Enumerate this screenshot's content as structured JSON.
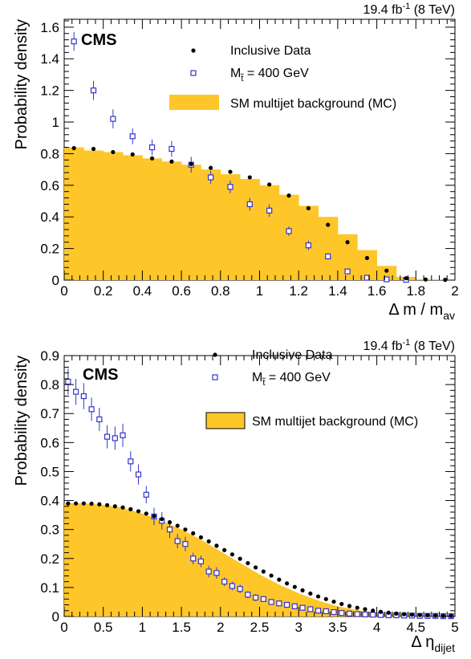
{
  "chart_data": [
    {
      "type": "scatter",
      "lumi_text": "19.4 fb",
      "lumi_sup": "-1",
      "lumi_tail": " (8 TeV)",
      "cms_label": "CMS",
      "xlabel": "Δ m / m",
      "xlabel_sub": "av",
      "ylabel": "Probability density",
      "xlim": [
        0,
        2
      ],
      "ylim": [
        0,
        1.65
      ],
      "xticks": [
        0,
        0.2,
        0.4,
        0.6,
        0.8,
        1,
        1.2,
        1.4,
        1.6,
        1.8,
        2
      ],
      "xtick_labels": [
        "0",
        "0.2",
        "0.4",
        "0.6",
        "0.8",
        "1",
        "1.2",
        "1.4",
        "1.6",
        "1.8",
        "2"
      ],
      "yticks": [
        0,
        0.2,
        0.4,
        0.6,
        0.8,
        1,
        1.2,
        1.4,
        1.6
      ],
      "ytick_labels": [
        "0",
        "0.2",
        "0.4",
        "0.6",
        "0.8",
        "1",
        "1.2",
        "1.4",
        "1.6"
      ],
      "grid": false,
      "legend": {
        "position": "top-right",
        "data_label": "Inclusive Data",
        "signal_label": "M",
        "signal_sub": "t̃",
        "signal_tail": " = 400 GeV",
        "bkg_label": "SM multijet background (MC)"
      },
      "series": [
        {
          "name": "SM multijet background (MC)",
          "kind": "histogram",
          "color": "#ffc629",
          "bin_edges": [
            0,
            0.1,
            0.2,
            0.3,
            0.4,
            0.5,
            0.6,
            0.7,
            0.8,
            0.9,
            1.0,
            1.1,
            1.2,
            1.3,
            1.4,
            1.5,
            1.6,
            1.7,
            1.8,
            1.9,
            2.0
          ],
          "values": [
            0.84,
            0.82,
            0.81,
            0.79,
            0.77,
            0.75,
            0.73,
            0.7,
            0.67,
            0.64,
            0.6,
            0.54,
            0.47,
            0.4,
            0.29,
            0.19,
            0.09,
            0.02,
            0.005,
            0.002
          ]
        },
        {
          "name": "Inclusive Data",
          "kind": "points",
          "color": "#000000",
          "x": [
            0.05,
            0.15,
            0.25,
            0.35,
            0.45,
            0.55,
            0.65,
            0.75,
            0.85,
            0.95,
            1.05,
            1.15,
            1.25,
            1.35,
            1.45,
            1.55,
            1.65,
            1.75,
            1.85,
            1.95
          ],
          "y": [
            0.835,
            0.83,
            0.81,
            0.795,
            0.77,
            0.75,
            0.735,
            0.71,
            0.685,
            0.65,
            0.605,
            0.535,
            0.455,
            0.35,
            0.24,
            0.14,
            0.06,
            0.012,
            0.004,
            0.002
          ]
        },
        {
          "name": "M t̃ = 400 GeV",
          "kind": "points_errors",
          "color": "#3333cc",
          "x": [
            0.05,
            0.15,
            0.25,
            0.35,
            0.45,
            0.55,
            0.65,
            0.75,
            0.85,
            0.95,
            1.05,
            1.15,
            1.25,
            1.35,
            1.45,
            1.55,
            1.65,
            1.75
          ],
          "y": [
            1.51,
            1.2,
            1.02,
            0.91,
            0.84,
            0.83,
            0.73,
            0.65,
            0.59,
            0.48,
            0.44,
            0.31,
            0.22,
            0.15,
            0.055,
            0.015,
            0.005,
            0.002
          ],
          "err": [
            0.06,
            0.06,
            0.06,
            0.05,
            0.05,
            0.05,
            0.05,
            0.04,
            0.04,
            0.04,
            0.04,
            0.03,
            0.03,
            0.02,
            0.015,
            0.01,
            0.005,
            0.002
          ]
        }
      ]
    },
    {
      "type": "scatter",
      "lumi_text": "19.4 fb",
      "lumi_sup": "-1",
      "lumi_tail": " (8 TeV)",
      "cms_label": "CMS",
      "xlabel": "Δ η",
      "xlabel_sub": "dijet",
      "ylabel": "Probability density",
      "xlim": [
        0,
        5
      ],
      "ylim": [
        0,
        0.9
      ],
      "xticks": [
        0,
        0.5,
        1,
        1.5,
        2,
        2.5,
        3,
        3.5,
        4,
        4.5,
        5
      ],
      "xtick_labels": [
        "0",
        "0.5",
        "1",
        "1.5",
        "2",
        "2.5",
        "3",
        "3.5",
        "4",
        "4.5",
        "5"
      ],
      "yticks": [
        0,
        0.1,
        0.2,
        0.3,
        0.4,
        0.5,
        0.6,
        0.7,
        0.8,
        0.9
      ],
      "ytick_labels": [
        "0",
        "0.1",
        "0.2",
        "0.3",
        "0.4",
        "0.5",
        "0.6",
        "0.7",
        "0.8",
        "0.9"
      ],
      "grid": false,
      "legend": {
        "position": "top-right",
        "data_label": "Inclusive Data",
        "signal_label": "M",
        "signal_sub": "t̃",
        "signal_tail": " = 400 GeV",
        "bkg_label": "SM multijet background (MC)"
      },
      "series": [
        {
          "name": "SM multijet background (MC)",
          "kind": "area",
          "color": "#ffc629",
          "x": [
            0,
            0.25,
            0.5,
            0.75,
            1.0,
            1.25,
            1.5,
            1.75,
            2.0,
            2.25,
            2.5,
            2.75,
            3.0,
            3.25,
            3.5,
            3.75,
            4.0,
            4.25,
            4.5,
            4.75,
            5.0
          ],
          "y": [
            0.39,
            0.39,
            0.385,
            0.375,
            0.355,
            0.33,
            0.3,
            0.265,
            0.225,
            0.185,
            0.145,
            0.11,
            0.08,
            0.055,
            0.035,
            0.022,
            0.013,
            0.007,
            0.004,
            0.002,
            0.001
          ]
        },
        {
          "name": "Inclusive Data",
          "kind": "points",
          "color": "#000000",
          "x": [
            0.05,
            0.15,
            0.25,
            0.35,
            0.45,
            0.55,
            0.65,
            0.75,
            0.85,
            0.95,
            1.05,
            1.15,
            1.25,
            1.35,
            1.45,
            1.55,
            1.65,
            1.75,
            1.85,
            1.95,
            2.05,
            2.15,
            2.25,
            2.35,
            2.45,
            2.55,
            2.65,
            2.75,
            2.85,
            2.95,
            3.05,
            3.15,
            3.25,
            3.35,
            3.45,
            3.55,
            3.65,
            3.75,
            3.85,
            3.95,
            4.05,
            4.15,
            4.25,
            4.35,
            4.45,
            4.55,
            4.65,
            4.75,
            4.85,
            4.95
          ],
          "y": [
            0.39,
            0.39,
            0.39,
            0.389,
            0.387,
            0.384,
            0.38,
            0.376,
            0.37,
            0.363,
            0.355,
            0.346,
            0.336,
            0.325,
            0.313,
            0.3,
            0.287,
            0.273,
            0.259,
            0.244,
            0.229,
            0.214,
            0.199,
            0.184,
            0.169,
            0.155,
            0.141,
            0.127,
            0.114,
            0.102,
            0.09,
            0.079,
            0.069,
            0.06,
            0.051,
            0.043,
            0.036,
            0.03,
            0.025,
            0.02,
            0.016,
            0.013,
            0.01,
            0.008,
            0.006,
            0.005,
            0.004,
            0.003,
            0.002,
            0.002
          ]
        },
        {
          "name": "M t̃ = 400 GeV",
          "kind": "points_errors",
          "color": "#3333cc",
          "x": [
            0.05,
            0.15,
            0.25,
            0.35,
            0.45,
            0.55,
            0.65,
            0.75,
            0.85,
            0.95,
            1.05,
            1.15,
            1.25,
            1.35,
            1.45,
            1.55,
            1.65,
            1.75,
            1.85,
            1.95,
            2.05,
            2.15,
            2.25,
            2.35,
            2.45,
            2.55,
            2.65,
            2.75,
            2.85,
            2.95,
            3.05,
            3.15,
            3.25,
            3.35,
            3.45,
            3.55,
            3.65,
            3.75,
            3.85,
            3.95,
            4.05,
            4.15,
            4.25,
            4.35,
            4.45,
            4.55,
            4.65,
            4.75,
            4.85,
            4.95
          ],
          "y": [
            0.81,
            0.775,
            0.76,
            0.715,
            0.68,
            0.62,
            0.615,
            0.625,
            0.535,
            0.49,
            0.42,
            0.345,
            0.33,
            0.3,
            0.26,
            0.25,
            0.2,
            0.19,
            0.155,
            0.15,
            0.12,
            0.105,
            0.095,
            0.075,
            0.065,
            0.06,
            0.05,
            0.045,
            0.04,
            0.035,
            0.03,
            0.025,
            0.02,
            0.018,
            0.015,
            0.012,
            0.01,
            0.008,
            0.007,
            0.006,
            0.005,
            0.004,
            0.004,
            0.003,
            0.003,
            0.002,
            0.002,
            0.002,
            0.001,
            0.001
          ],
          "err": [
            0.045,
            0.045,
            0.045,
            0.04,
            0.04,
            0.04,
            0.04,
            0.04,
            0.035,
            0.035,
            0.03,
            0.03,
            0.03,
            0.03,
            0.025,
            0.025,
            0.02,
            0.02,
            0.02,
            0.02,
            0.015,
            0.015,
            0.015,
            0.012,
            0.012,
            0.01,
            0.01,
            0.01,
            0.008,
            0.008,
            0.008,
            0.007,
            0.006,
            0.006,
            0.005,
            0.005,
            0.004,
            0.004,
            0.003,
            0.003,
            0.003,
            0.003,
            0.002,
            0.002,
            0.002,
            0.002,
            0.002,
            0.001,
            0.001,
            0.001
          ]
        }
      ]
    }
  ]
}
